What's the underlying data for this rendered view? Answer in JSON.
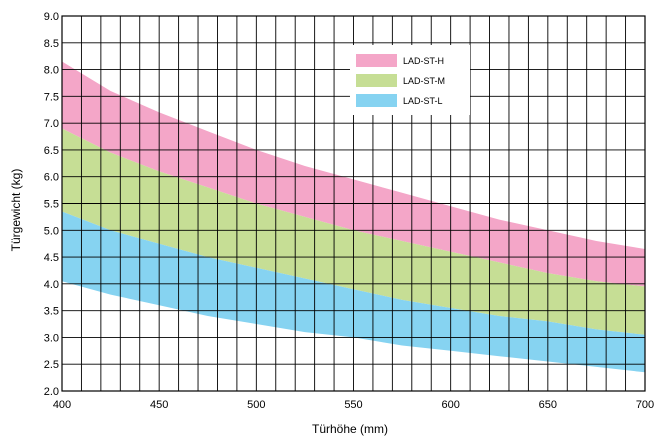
{
  "chart_data": {
    "type": "area",
    "xlabel": "Türhöhe (mm)",
    "ylabel": "Türgewicht (kg)",
    "xlim": [
      400,
      700
    ],
    "ylim": [
      2.0,
      9.0
    ],
    "x_ticks": [
      "400",
      "450",
      "500",
      "550",
      "600",
      "650",
      "700"
    ],
    "y_ticks": [
      "2.0",
      "2.5",
      "3.0",
      "3.5",
      "4.0",
      "4.5",
      "5.0",
      "5.5",
      "6.0",
      "6.5",
      "7.0",
      "7.5",
      "8.0",
      "8.5",
      "9.0"
    ],
    "grid": true,
    "legend_position": "top-right",
    "x": [
      400,
      425,
      450,
      475,
      500,
      525,
      550,
      575,
      600,
      625,
      650,
      675,
      700
    ],
    "series": [
      {
        "name": "LAD-ST-H",
        "color": "#f4a6c8",
        "upper": [
          8.15,
          7.6,
          7.2,
          6.85,
          6.5,
          6.2,
          5.95,
          5.7,
          5.45,
          5.2,
          5.0,
          4.8,
          4.65
        ],
        "lower": [
          6.9,
          6.45,
          6.1,
          5.8,
          5.5,
          5.25,
          5.0,
          4.8,
          4.6,
          4.4,
          4.2,
          4.05,
          3.95
        ]
      },
      {
        "name": "LAD-ST-M",
        "color": "#c6de95",
        "upper": [
          6.9,
          6.45,
          6.1,
          5.8,
          5.5,
          5.25,
          5.0,
          4.8,
          4.6,
          4.4,
          4.2,
          4.05,
          3.95
        ],
        "lower": [
          5.35,
          5.0,
          4.75,
          4.5,
          4.3,
          4.1,
          3.9,
          3.7,
          3.55,
          3.4,
          3.3,
          3.15,
          3.05
        ]
      },
      {
        "name": "LAD-ST-L",
        "color": "#86d3f1",
        "upper": [
          5.35,
          5.0,
          4.75,
          4.5,
          4.3,
          4.1,
          3.9,
          3.7,
          3.55,
          3.4,
          3.3,
          3.15,
          3.05
        ],
        "lower": [
          4.05,
          3.8,
          3.6,
          3.4,
          3.25,
          3.1,
          3.0,
          2.85,
          2.75,
          2.65,
          2.55,
          2.45,
          2.35
        ]
      }
    ]
  }
}
